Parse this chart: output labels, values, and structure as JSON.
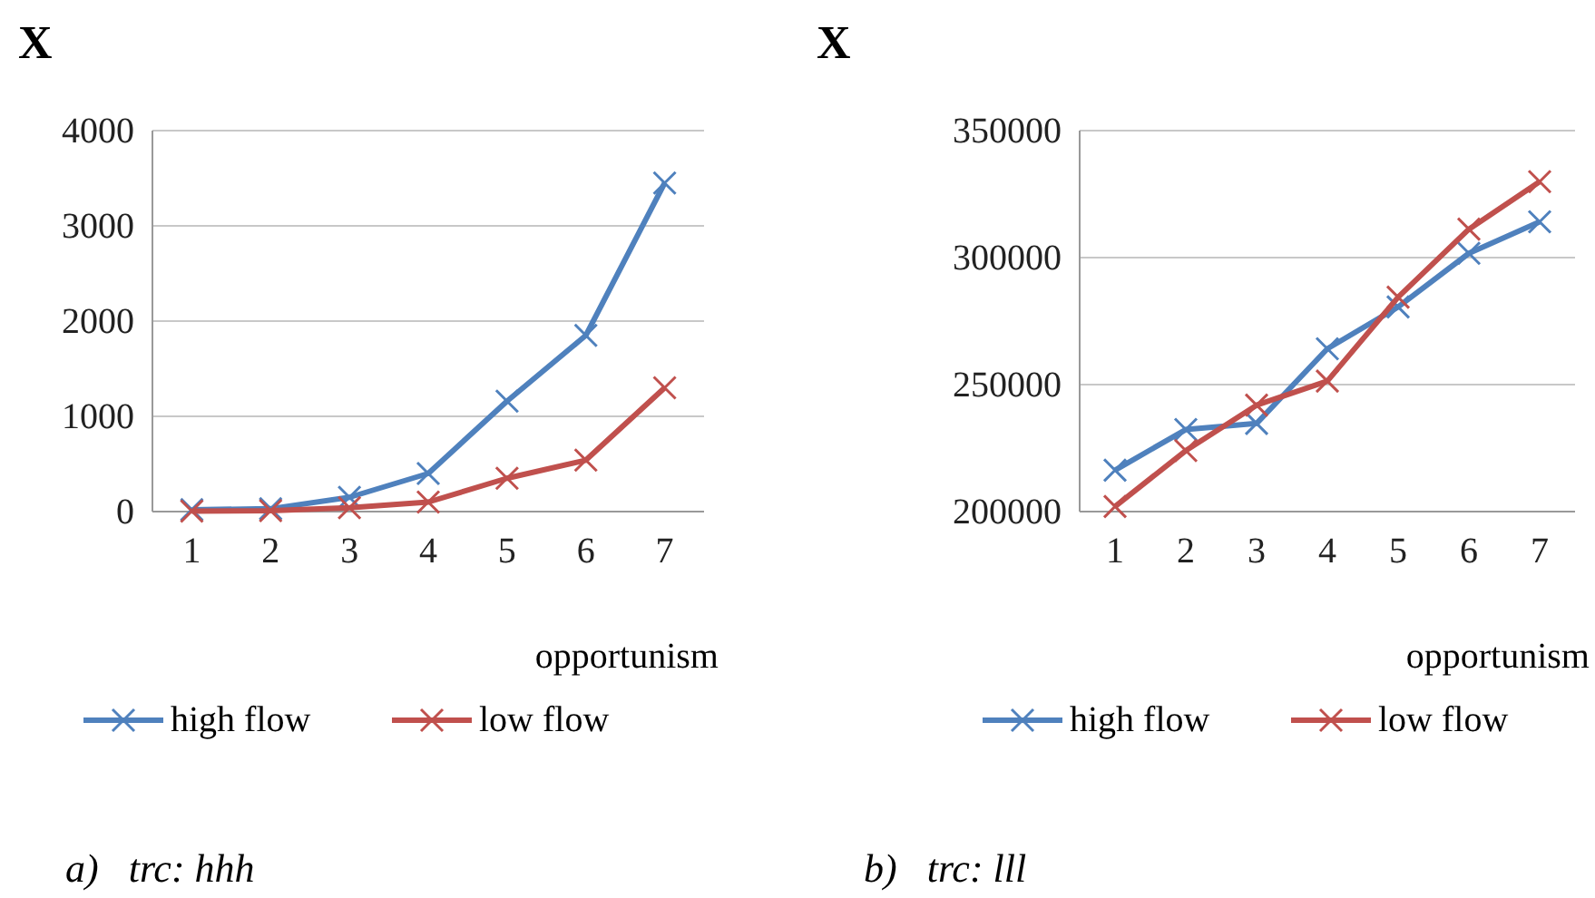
{
  "chart_data": [
    {
      "type": "line",
      "title": "X",
      "xlabel": "opportunism",
      "categories": [
        "1",
        "2",
        "3",
        "4",
        "5",
        "6",
        "7"
      ],
      "series": [
        {
          "name": "high flow",
          "color": "#4f81bd",
          "values": [
            20,
            30,
            150,
            400,
            1160,
            1850,
            3450
          ]
        },
        {
          "name": "low flow",
          "color": "#c0504d",
          "values": [
            5,
            10,
            40,
            100,
            350,
            540,
            1300
          ]
        }
      ],
      "ylim": [
        0,
        4000
      ],
      "yticks": [
        0,
        1000,
        2000,
        3000,
        4000
      ],
      "grid": "y",
      "legend": "bottom",
      "marker": "cross",
      "line_style": "solid",
      "annotations": [
        "a)   trc: hhh"
      ]
    },
    {
      "type": "line",
      "title": "X",
      "xlabel": "opportunism",
      "categories": [
        "1",
        "2",
        "3",
        "4",
        "5",
        "6",
        "7"
      ],
      "series": [
        {
          "name": "high flow",
          "color": "#4f81bd",
          "values": [
            216300,
            232300,
            234700,
            264100,
            280600,
            301700,
            314100
          ]
        },
        {
          "name": "low flow",
          "color": "#c0504d",
          "values": [
            202000,
            224000,
            241900,
            251400,
            284400,
            311200,
            329900
          ]
        }
      ],
      "ylim": [
        200000,
        350000
      ],
      "yticks": [
        200000,
        250000,
        300000,
        350000
      ],
      "grid": "y",
      "legend": "bottom",
      "marker": "cross",
      "line_style": "solid",
      "annotations": [
        "b)   trc: lll"
      ]
    }
  ]
}
